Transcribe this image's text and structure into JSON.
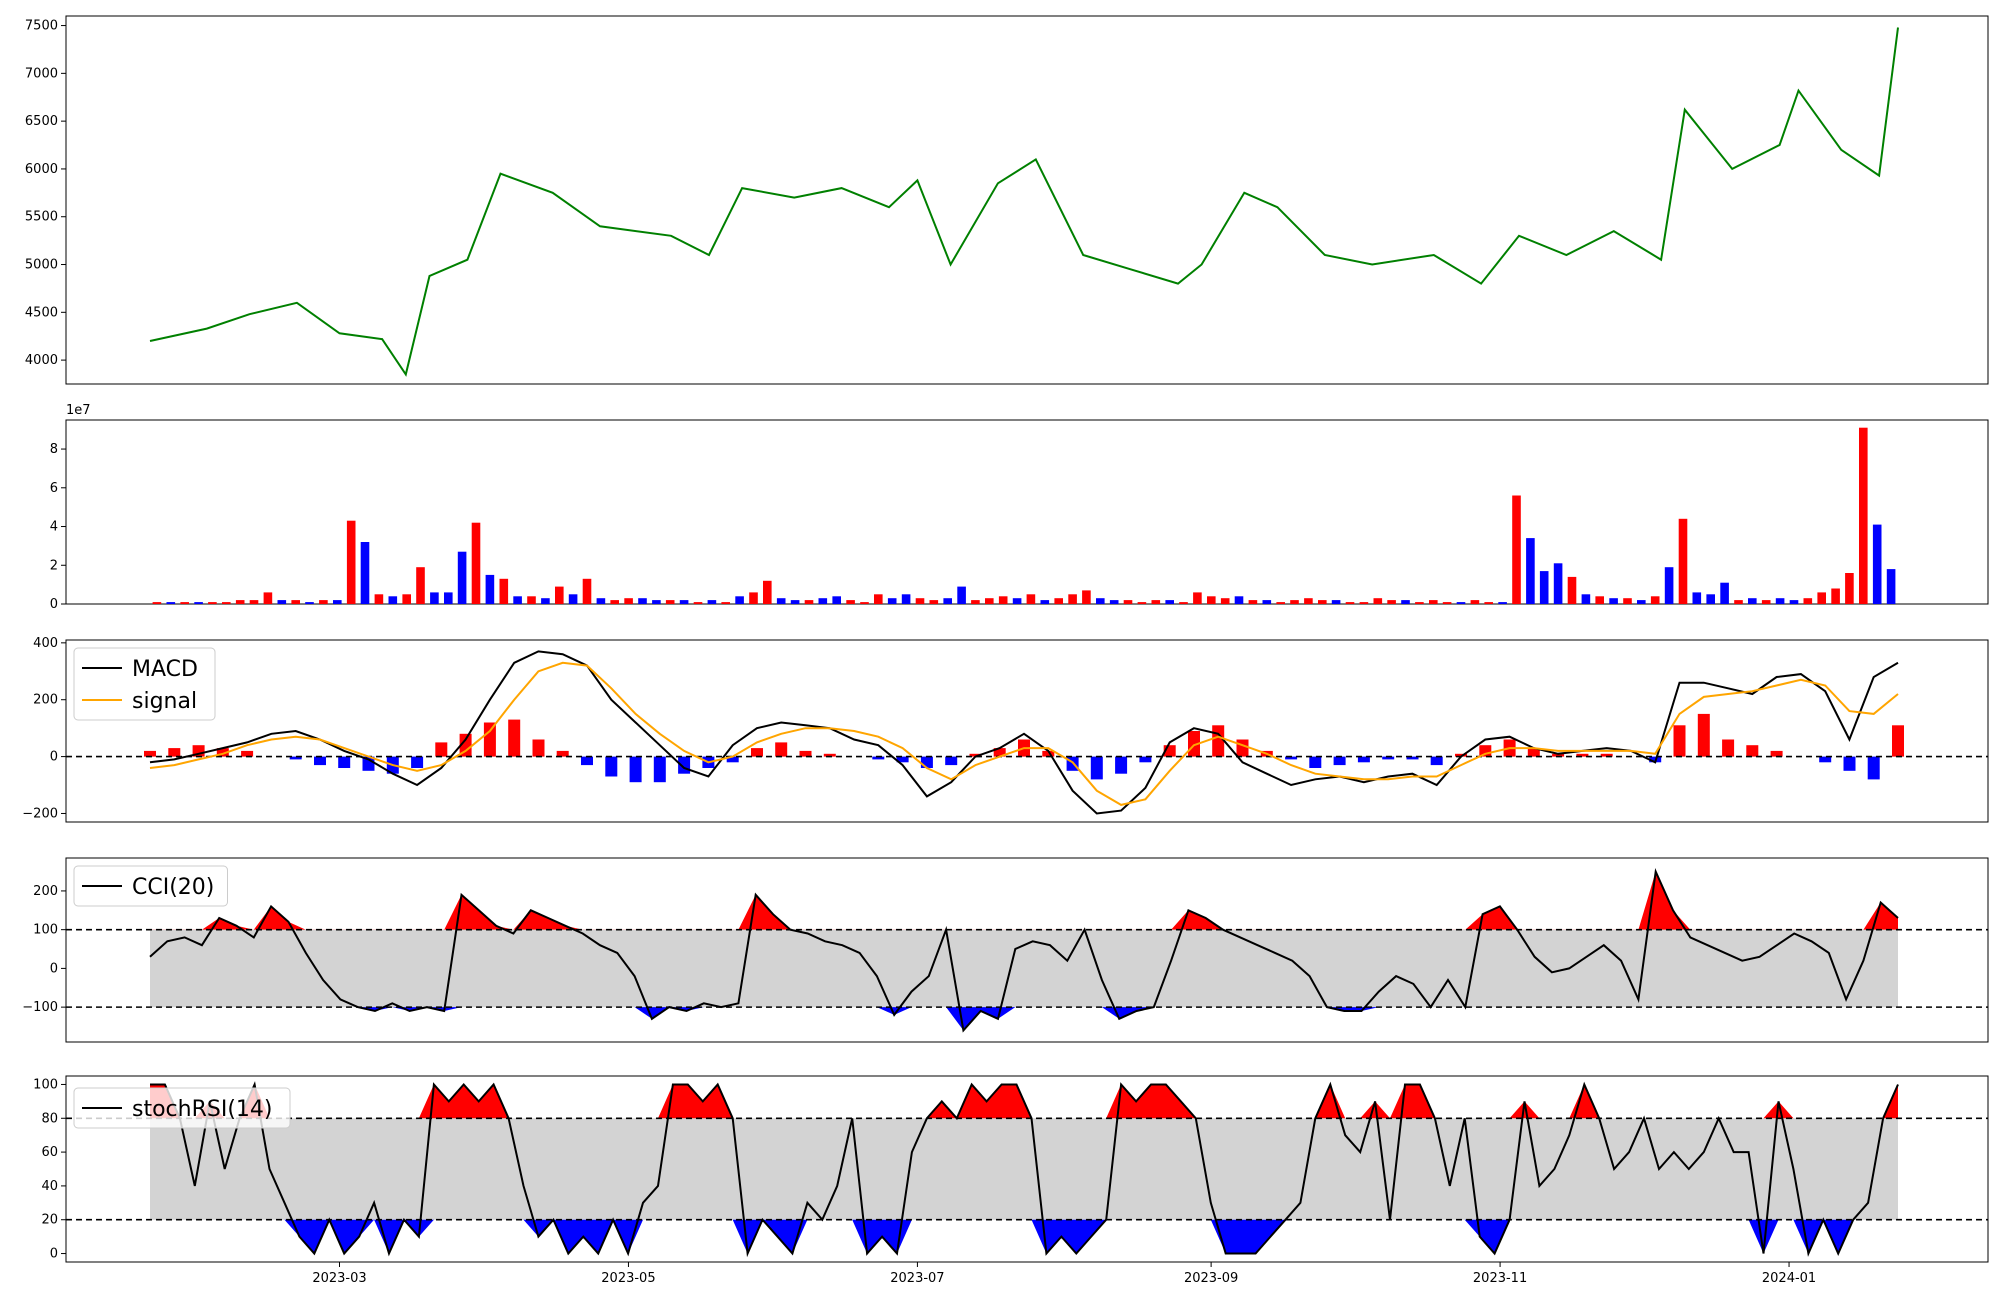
{
  "chart_data": [
    {
      "type": "line",
      "panel": "price",
      "series": [
        {
          "color": "#008000",
          "x_dates": [
            "2023-01-20",
            "2023-02-01",
            "2023-02-10",
            "2023-02-20",
            "2023-03-01",
            "2023-03-10",
            "2023-03-15",
            "2023-03-20",
            "2023-03-28",
            "2023-04-04",
            "2023-04-15",
            "2023-04-25",
            "2023-05-10",
            "2023-05-18",
            "2023-05-25",
            "2023-06-05",
            "2023-06-15",
            "2023-06-25",
            "2023-07-01",
            "2023-07-08",
            "2023-07-18",
            "2023-07-26",
            "2023-08-05",
            "2023-08-15",
            "2023-08-25",
            "2023-08-30",
            "2023-09-08",
            "2023-09-15",
            "2023-09-25",
            "2023-10-05",
            "2023-10-18",
            "2023-10-28",
            "2023-11-05",
            "2023-11-15",
            "2023-11-25",
            "2023-12-05",
            "2023-12-10",
            "2023-12-20",
            "2023-12-30",
            "2024-01-03",
            "2024-01-12",
            "2024-01-20",
            "2024-01-24"
          ],
          "values": [
            4200,
            4330,
            4480,
            4600,
            4280,
            4220,
            3850,
            4880,
            5050,
            5950,
            5750,
            5400,
            5300,
            5100,
            5800,
            5700,
            5800,
            5600,
            5880,
            5000,
            5850,
            6100,
            5100,
            4950,
            4800,
            5000,
            5750,
            5600,
            5100,
            5000,
            5100,
            4800,
            5300,
            5100,
            5350,
            5050,
            6620,
            6000,
            6250,
            6820,
            6200,
            5930,
            7480
          ]
        }
      ],
      "yticks": [
        "4000",
        "4500",
        "5000",
        "5500",
        "6000",
        "6500",
        "7000",
        "7500"
      ],
      "ylim": [
        3750,
        7600
      ]
    },
    {
      "type": "bar",
      "panel": "volume",
      "offset_label": "1e7",
      "yticks": [
        "0",
        "2",
        "4",
        "6",
        "8"
      ],
      "ylim": [
        0,
        9.5
      ],
      "up_color": "#ff0000",
      "down_color": "#0000ff",
      "bars": [
        [
          0.1,
          0
        ],
        [
          0.1,
          1
        ],
        [
          0.1,
          0
        ],
        [
          0.1,
          1
        ],
        [
          0.1,
          0
        ],
        [
          0.1,
          0
        ],
        [
          0.2,
          0
        ],
        [
          0.2,
          0
        ],
        [
          0.6,
          0
        ],
        [
          0.2,
          1
        ],
        [
          0.2,
          0
        ],
        [
          0.1,
          1
        ],
        [
          0.2,
          0
        ],
        [
          0.2,
          1
        ],
        [
          4.3,
          0
        ],
        [
          3.2,
          1
        ],
        [
          0.5,
          0
        ],
        [
          0.4,
          1
        ],
        [
          0.5,
          0
        ],
        [
          1.9,
          0
        ],
        [
          0.6,
          1
        ],
        [
          0.6,
          1
        ],
        [
          2.7,
          1
        ],
        [
          4.2,
          0
        ],
        [
          1.5,
          1
        ],
        [
          1.3,
          0
        ],
        [
          0.4,
          1
        ],
        [
          0.4,
          0
        ],
        [
          0.3,
          1
        ],
        [
          0.9,
          0
        ],
        [
          0.5,
          1
        ],
        [
          1.3,
          0
        ],
        [
          0.3,
          1
        ],
        [
          0.2,
          0
        ],
        [
          0.3,
          0
        ],
        [
          0.3,
          1
        ],
        [
          0.2,
          1
        ],
        [
          0.2,
          0
        ],
        [
          0.2,
          1
        ],
        [
          0.1,
          0
        ],
        [
          0.2,
          1
        ],
        [
          0.1,
          0
        ],
        [
          0.4,
          1
        ],
        [
          0.6,
          0
        ],
        [
          1.2,
          0
        ],
        [
          0.3,
          1
        ],
        [
          0.2,
          1
        ],
        [
          0.2,
          0
        ],
        [
          0.3,
          1
        ],
        [
          0.4,
          1
        ],
        [
          0.2,
          0
        ],
        [
          0.1,
          0
        ],
        [
          0.5,
          0
        ],
        [
          0.3,
          1
        ],
        [
          0.5,
          1
        ],
        [
          0.3,
          0
        ],
        [
          0.2,
          0
        ],
        [
          0.3,
          1
        ],
        [
          0.9,
          1
        ],
        [
          0.2,
          0
        ],
        [
          0.3,
          0
        ],
        [
          0.4,
          0
        ],
        [
          0.3,
          1
        ],
        [
          0.5,
          0
        ],
        [
          0.2,
          1
        ],
        [
          0.3,
          0
        ],
        [
          0.5,
          0
        ],
        [
          0.7,
          0
        ],
        [
          0.3,
          1
        ],
        [
          0.2,
          1
        ],
        [
          0.2,
          0
        ],
        [
          0.1,
          0
        ],
        [
          0.2,
          0
        ],
        [
          0.2,
          1
        ],
        [
          0.1,
          0
        ],
        [
          0.6,
          0
        ],
        [
          0.4,
          0
        ],
        [
          0.3,
          0
        ],
        [
          0.4,
          1
        ],
        [
          0.2,
          0
        ],
        [
          0.2,
          1
        ],
        [
          0.1,
          0
        ],
        [
          0.2,
          0
        ],
        [
          0.3,
          0
        ],
        [
          0.2,
          0
        ],
        [
          0.2,
          1
        ],
        [
          0.1,
          0
        ],
        [
          0.1,
          0
        ],
        [
          0.3,
          0
        ],
        [
          0.2,
          0
        ],
        [
          0.2,
          1
        ],
        [
          0.1,
          0
        ],
        [
          0.2,
          0
        ],
        [
          0.1,
          0
        ],
        [
          0.1,
          1
        ],
        [
          0.2,
          0
        ],
        [
          0.1,
          0
        ],
        [
          0.1,
          1
        ],
        [
          5.6,
          0
        ],
        [
          3.4,
          1
        ],
        [
          1.7,
          1
        ],
        [
          2.1,
          1
        ],
        [
          1.4,
          0
        ],
        [
          0.5,
          1
        ],
        [
          0.4,
          0
        ],
        [
          0.3,
          1
        ],
        [
          0.3,
          0
        ],
        [
          0.2,
          1
        ],
        [
          0.4,
          0
        ],
        [
          1.9,
          1
        ],
        [
          4.4,
          0
        ],
        [
          0.6,
          1
        ],
        [
          0.5,
          1
        ],
        [
          1.1,
          1
        ],
        [
          0.2,
          0
        ],
        [
          0.3,
          1
        ],
        [
          0.2,
          0
        ],
        [
          0.3,
          1
        ],
        [
          0.2,
          1
        ],
        [
          0.3,
          0
        ],
        [
          0.6,
          0
        ],
        [
          0.8,
          0
        ],
        [
          1.6,
          0
        ],
        [
          9.1,
          0
        ],
        [
          4.1,
          1
        ],
        [
          1.8,
          1
        ]
      ]
    },
    {
      "type": "line",
      "panel": "macd",
      "yticks": [
        "−200",
        "0",
        "200",
        "400"
      ],
      "ylim": [
        -230,
        410
      ],
      "zero_line": 0,
      "series": [
        {
          "name": "MACD",
          "color": "#000000",
          "values": [
            -20,
            -10,
            10,
            30,
            50,
            80,
            90,
            60,
            20,
            -10,
            -60,
            -100,
            -40,
            60,
            200,
            330,
            370,
            360,
            320,
            200,
            120,
            40,
            -40,
            -70,
            40,
            100,
            120,
            110,
            100,
            60,
            40,
            -30,
            -140,
            -90,
            0,
            30,
            80,
            20,
            -120,
            -200,
            -190,
            -110,
            50,
            100,
            80,
            -20,
            -60,
            -100,
            -80,
            -70,
            -90,
            -70,
            -60,
            -100,
            0,
            60,
            70,
            30,
            10,
            20,
            30,
            20,
            -20,
            260,
            260,
            240,
            220,
            280,
            290,
            230,
            60,
            280,
            330
          ]
        },
        {
          "name": "signal",
          "color": "#ffa500",
          "values": [
            -40,
            -30,
            -10,
            10,
            40,
            60,
            70,
            60,
            30,
            0,
            -30,
            -50,
            -30,
            20,
            90,
            200,
            300,
            330,
            320,
            240,
            150,
            80,
            20,
            -20,
            0,
            50,
            80,
            100,
            100,
            90,
            70,
            30,
            -40,
            -80,
            -30,
            0,
            30,
            30,
            -20,
            -120,
            -170,
            -150,
            -50,
            40,
            70,
            40,
            10,
            -30,
            -60,
            -70,
            -80,
            -80,
            -70,
            -70,
            -30,
            10,
            30,
            30,
            20,
            20,
            20,
            20,
            10,
            150,
            210,
            220,
            230,
            250,
            270,
            250,
            160,
            150,
            220
          ]
        }
      ],
      "histogram": [
        20,
        30,
        40,
        30,
        20,
        0,
        -10,
        -30,
        -40,
        -50,
        -60,
        -40,
        50,
        80,
        120,
        130,
        60,
        20,
        -30,
        -70,
        -90,
        -90,
        -60,
        -40,
        -20,
        30,
        50,
        20,
        10,
        0,
        -10,
        -20,
        -40,
        -30,
        10,
        30,
        60,
        20,
        -50,
        -80,
        -60,
        -20,
        40,
        90,
        110,
        60,
        20,
        -10,
        -40,
        -30,
        -20,
        -10,
        -10,
        -30,
        10,
        40,
        60,
        30,
        10,
        10,
        10,
        0,
        -20,
        110,
        150,
        60,
        40,
        20,
        0,
        -20,
        -50,
        -80,
        110
      ]
    },
    {
      "type": "line",
      "panel": "cci",
      "yticks": [
        "−100",
        "0",
        "100",
        "200"
      ],
      "ylim": [
        -190,
        285
      ],
      "thresholds": [
        -100,
        100
      ],
      "series": [
        {
          "name": "CCI(20)",
          "color": "#000000",
          "values": [
            30,
            70,
            80,
            60,
            130,
            110,
            80,
            160,
            120,
            40,
            -30,
            -80,
            -100,
            -110,
            -90,
            -110,
            -100,
            -110,
            190,
            150,
            110,
            90,
            150,
            130,
            110,
            90,
            60,
            40,
            -20,
            -130,
            -100,
            -110,
            -90,
            -100,
            -90,
            190,
            140,
            100,
            90,
            70,
            60,
            40,
            -20,
            -120,
            -60,
            -20,
            100,
            -160,
            -110,
            -130,
            50,
            70,
            60,
            20,
            100,
            -30,
            -130,
            -110,
            -100,
            20,
            150,
            130,
            100,
            80,
            60,
            40,
            20,
            -20,
            -100,
            -110,
            -110,
            -60,
            -20,
            -40,
            -100,
            -30,
            -100,
            140,
            160,
            100,
            30,
            -10,
            0,
            30,
            60,
            20,
            -80,
            250,
            150,
            80,
            60,
            40,
            20,
            30,
            60,
            90,
            70,
            40,
            -80,
            20,
            170,
            130
          ]
        }
      ],
      "fill_colors": {
        "above": "#ff0000",
        "below": "#0000ff",
        "band": "#d3d3d3"
      }
    },
    {
      "type": "line",
      "panel": "stochrsi",
      "yticks": [
        "0",
        "20",
        "40",
        "60",
        "80",
        "100"
      ],
      "ylim": [
        -5,
        105
      ],
      "thresholds": [
        20,
        80
      ],
      "series": [
        {
          "name": "stochRSI(14)",
          "color": "#000000",
          "values": [
            100,
            100,
            80,
            40,
            90,
            50,
            80,
            100,
            50,
            30,
            10,
            0,
            20,
            0,
            10,
            30,
            0,
            20,
            10,
            100,
            90,
            100,
            90,
            100,
            80,
            40,
            10,
            20,
            0,
            10,
            0,
            20,
            0,
            30,
            40,
            100,
            100,
            90,
            100,
            80,
            0,
            20,
            10,
            0,
            30,
            20,
            40,
            80,
            0,
            10,
            0,
            60,
            80,
            90,
            80,
            100,
            90,
            100,
            100,
            80,
            0,
            10,
            0,
            10,
            20,
            100,
            90,
            100,
            100,
            90,
            80,
            30,
            0,
            0,
            0,
            10,
            20,
            30,
            80,
            100,
            70,
            60,
            90,
            20,
            100,
            100,
            80,
            40,
            80,
            10,
            0,
            20,
            90,
            40,
            50,
            70,
            100,
            80,
            50,
            60,
            80,
            50,
            60,
            50,
            60,
            80,
            60,
            60,
            0,
            90,
            50,
            0,
            20,
            0,
            20,
            30,
            80,
            100
          ]
        }
      ],
      "fill_colors": {
        "above": "#ff0000",
        "below": "#0000ff",
        "band": "#d3d3d3"
      }
    }
  ],
  "x_axis": {
    "ticks": [
      "2023-03",
      "2023-05",
      "2023-07",
      "2023-09",
      "2023-11",
      "2024-01"
    ]
  },
  "legend": {
    "macd": [
      "MACD",
      "signal"
    ],
    "cci": "CCI(20)",
    "stochrsi": "stochRSI(14)"
  }
}
